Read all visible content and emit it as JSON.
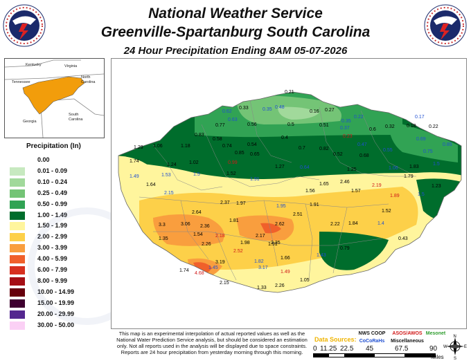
{
  "header": {
    "line1": "National Weather Service",
    "line2": "Greenville-Spartanburg South Carolina",
    "line3": "24 Hour Precipitation Ending 8AM 05-07-2026"
  },
  "logo": {
    "text_top": "NATIONAL WEATHER SERVICE",
    "text_bottom": "U.S. DEPARTMENT OF COMMERCE"
  },
  "inset": {
    "states": [
      "Kentucky",
      "Virginia",
      "Tennessee",
      "North Carolina",
      "South Carolina",
      "Georgia"
    ]
  },
  "legend": {
    "title": "Precipitation (In)",
    "items": [
      {
        "label": "0.00",
        "color": "#ffffff"
      },
      {
        "label": "0.01 - 0.09",
        "color": "#c7e9c0"
      },
      {
        "label": "0.10 - 0.24",
        "color": "#a1d99b"
      },
      {
        "label": "0.25 - 0.49",
        "color": "#74c476"
      },
      {
        "label": "0.50 - 0.99",
        "color": "#31a354"
      },
      {
        "label": "1.00 - 1.49",
        "color": "#006d2c"
      },
      {
        "label": "1.50 - 1.99",
        "color": "#fff59d"
      },
      {
        "label": "2.00 - 2.99",
        "color": "#fdd049"
      },
      {
        "label": "3.00 - 3.99",
        "color": "#f99e3e"
      },
      {
        "label": "4.00 - 5.99",
        "color": "#f0602b"
      },
      {
        "label": "6.00 - 7.99",
        "color": "#d7301f"
      },
      {
        "label": "8.00 - 9.99",
        "color": "#a50f15"
      },
      {
        "label": "10.00 - 14.99",
        "color": "#67000d"
      },
      {
        "label": "15.00 - 19.99",
        "color": "#3f0030"
      },
      {
        "label": "20.00 - 29.99",
        "color": "#54278f"
      },
      {
        "label": "30.00 - 50.00",
        "color": "#fbd0f5"
      }
    ]
  },
  "disclaimer": "This map is an experimental interpolation of actual reported values as well as the National Water Prediction Service analysis, but should be considered an estimation only. Not all reports used in the analysis will be displayed due to space constraints. Reports are 24 hour precipitation from yesterday morning through this morning.",
  "sources": {
    "title": "Data Sources:",
    "items": [
      {
        "name": "NWS COOP",
        "color": "#000000"
      },
      {
        "name": "CoCoRaHs",
        "color": "#1f4fd1"
      },
      {
        "name": "ASOS/AWOS",
        "color": "#d01818"
      },
      {
        "name": "Miscellaneous",
        "color": "#000000"
      },
      {
        "name": "Mesonet",
        "color": "#2e9d2e"
      }
    ]
  },
  "scale": {
    "ticks": [
      "0",
      "11.25",
      "22.5",
      "45",
      "67.5",
      "90"
    ],
    "unit": "Miles"
  },
  "compass": {
    "labels": [
      "N",
      "S",
      "E",
      "W"
    ]
  },
  "station_values": [
    {
      "v": "0.21",
      "c": "#000"
    },
    {
      "v": "0.62",
      "c": "#1f4fd1"
    },
    {
      "v": "0.33",
      "c": "#000"
    },
    {
      "v": "0.35",
      "c": "#1f4fd1"
    },
    {
      "v": "0.48",
      "c": "#1f4fd1"
    },
    {
      "v": "0.16",
      "c": "#000"
    },
    {
      "v": "0.27",
      "c": "#000"
    },
    {
      "v": "0.35",
      "c": "#1f4fd1"
    },
    {
      "v": "0.22",
      "c": "#1f4fd1"
    },
    {
      "v": "0.17",
      "c": "#1f4fd1"
    },
    {
      "v": "0.63",
      "c": "#1f4fd1"
    },
    {
      "v": "0.77",
      "c": "#000"
    },
    {
      "v": "0.56",
      "c": "#000"
    },
    {
      "v": "0.5",
      "c": "#000"
    },
    {
      "v": "0.51",
      "c": "#000"
    },
    {
      "v": "0.37",
      "c": "#1f4fd1"
    },
    {
      "v": "0.6",
      "c": "#000"
    },
    {
      "v": "0.32",
      "c": "#000"
    },
    {
      "v": "0.18",
      "c": "#000"
    },
    {
      "v": "0.22",
      "c": "#000"
    },
    {
      "v": "0.83",
      "c": "#000"
    },
    {
      "v": "0.58",
      "c": "#000"
    },
    {
      "v": "1.18",
      "c": "#000"
    },
    {
      "v": "0.74",
      "c": "#000"
    },
    {
      "v": "0.54",
      "c": "#000"
    },
    {
      "v": "0.4",
      "c": "#000"
    },
    {
      "v": "0.23",
      "c": "#d01818"
    },
    {
      "v": "0.47",
      "c": "#1f4fd1"
    },
    {
      "v": "0.69",
      "c": "#1f4fd1"
    },
    {
      "v": "0.85",
      "c": "#1f4fd1"
    },
    {
      "v": "1.29",
      "c": "#000"
    },
    {
      "v": "1.06",
      "c": "#000"
    },
    {
      "v": "0.85",
      "c": "#000"
    },
    {
      "v": "0.65",
      "c": "#000"
    },
    {
      "v": "0.7",
      "c": "#000"
    },
    {
      "v": "0.82",
      "c": "#000"
    },
    {
      "v": "0.52",
      "c": "#000"
    },
    {
      "v": "0.68",
      "c": "#000"
    },
    {
      "v": "0.55",
      "c": "#1f4fd1"
    },
    {
      "v": "0.75",
      "c": "#1f4fd1"
    },
    {
      "v": "1.74",
      "c": "#000"
    },
    {
      "v": "1.24",
      "c": "#000"
    },
    {
      "v": "1.02",
      "c": "#000"
    },
    {
      "v": "0.99",
      "c": "#d01818"
    },
    {
      "v": "1.27",
      "c": "#000"
    },
    {
      "v": "0.64",
      "c": "#1f4fd1"
    },
    {
      "v": "1.25",
      "c": "#000"
    },
    {
      "v": "1.06",
      "c": "#1f4fd1"
    },
    {
      "v": "1.83",
      "c": "#000"
    },
    {
      "v": "1.5",
      "c": "#1f4fd1"
    },
    {
      "v": "1.49",
      "c": "#1f4fd1"
    },
    {
      "v": "1.53",
      "c": "#1f4fd1"
    },
    {
      "v": "1.5",
      "c": "#1f4fd1"
    },
    {
      "v": "1.52",
      "c": "#000"
    },
    {
      "v": "1.91",
      "c": "#1f4fd1"
    },
    {
      "v": "1.65",
      "c": "#000"
    },
    {
      "v": "2.19",
      "c": "#d01818"
    },
    {
      "v": "1.79",
      "c": "#000"
    },
    {
      "v": "1.23",
      "c": "#000"
    },
    {
      "v": "1.64",
      "c": "#000"
    },
    {
      "v": "2.15",
      "c": "#1f4fd1"
    },
    {
      "v": "1.97",
      "c": "#000"
    },
    {
      "v": "1.56",
      "c": "#000"
    },
    {
      "v": "2.46",
      "c": "#000"
    },
    {
      "v": "1.57",
      "c": "#000"
    },
    {
      "v": "1.89",
      "c": "#d01818"
    },
    {
      "v": "1.5",
      "c": "#1f4fd1"
    },
    {
      "v": "2.64",
      "c": "#000"
    },
    {
      "v": "2.37",
      "c": "#000"
    },
    {
      "v": "1.95",
      "c": "#1f4fd1"
    },
    {
      "v": "1.91",
      "c": "#000"
    },
    {
      "v": "1.52",
      "c": "#000"
    },
    {
      "v": "3.3",
      "c": "#000"
    },
    {
      "v": "3.06",
      "c": "#000"
    },
    {
      "v": "2.36",
      "c": "#000"
    },
    {
      "v": "1.81",
      "c": "#000"
    },
    {
      "v": "2.62",
      "c": "#000"
    },
    {
      "v": "2.51",
      "c": "#000"
    },
    {
      "v": "2.22",
      "c": "#000"
    },
    {
      "v": "1.84",
      "c": "#000"
    },
    {
      "v": "1.4",
      "c": "#1f4fd1"
    },
    {
      "v": "1.35",
      "c": "#000"
    },
    {
      "v": "1.54",
      "c": "#000"
    },
    {
      "v": "2.18",
      "c": "#d01818"
    },
    {
      "v": "2.17",
      "c": "#000"
    },
    {
      "v": "2.35",
      "c": "#000"
    },
    {
      "v": "0.43",
      "c": "#000"
    },
    {
      "v": "2.26",
      "c": "#000"
    },
    {
      "v": "1.98",
      "c": "#000"
    },
    {
      "v": "1.91",
      "c": "#000"
    },
    {
      "v": "0.79",
      "c": "#000"
    },
    {
      "v": "2.52",
      "c": "#d01818"
    },
    {
      "v": "1.66",
      "c": "#000"
    },
    {
      "v": "1.43",
      "c": "#1f4fd1"
    },
    {
      "v": "1.74",
      "c": "#000"
    },
    {
      "v": "3.19",
      "c": "#000"
    },
    {
      "v": "1.82",
      "c": "#1f4fd1"
    },
    {
      "v": "1.45",
      "c": "#1f4fd1"
    },
    {
      "v": "3.17",
      "c": "#1f4fd1"
    },
    {
      "v": "4.68",
      "c": "#d01818"
    },
    {
      "v": "1.49",
      "c": "#d01818"
    },
    {
      "v": "2.15",
      "c": "#000"
    },
    {
      "v": "2.26",
      "c": "#000"
    },
    {
      "v": "1.05",
      "c": "#000"
    },
    {
      "v": "1.33",
      "c": "#000"
    }
  ]
}
